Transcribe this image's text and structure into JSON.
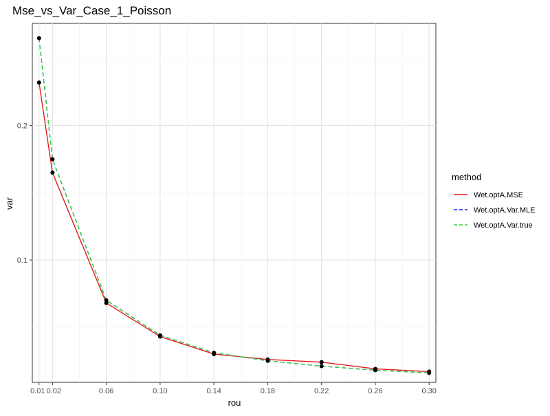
{
  "chart_data": {
    "type": "line",
    "title": "Mse_vs_Var_Case_1_Poisson",
    "xlabel": "rou",
    "ylabel": "var",
    "xlim": [
      0.005,
      0.305
    ],
    "ylim": [
      0.009,
      0.276
    ],
    "x_ticks": [
      0.01,
      0.02,
      0.06,
      0.1,
      0.14,
      0.18,
      0.22,
      0.26,
      0.3
    ],
    "x_tick_labels": [
      "0.01",
      "0.02",
      "0.06",
      "0.10",
      "0.14",
      "0.18",
      "0.22",
      "0.26",
      "0.30"
    ],
    "y_ticks": [
      0.1,
      0.2
    ],
    "y_tick_labels": [
      "0.1",
      "0.2"
    ],
    "grid": true,
    "legend_position": "right",
    "legend_title": "method",
    "x": [
      0.01,
      0.02,
      0.06,
      0.1,
      0.14,
      0.18,
      0.22,
      0.26,
      0.3
    ],
    "series": [
      {
        "name": "Wet.optA.MSE",
        "color": "#e41a1c",
        "dash": "solid",
        "values": [
          0.232,
          0.165,
          0.068,
          0.043,
          0.03,
          0.026,
          0.024,
          0.019,
          0.017
        ]
      },
      {
        "name": "Wet.optA.Var.MLE",
        "color": "#1f1fff",
        "dash": "dashed",
        "values": [
          0.265,
          0.175,
          0.07,
          0.044,
          0.031,
          0.025,
          0.021,
          0.018,
          0.016
        ]
      },
      {
        "name": "Wet.optA.Var.true",
        "color": "#39d339",
        "dash": "dashed",
        "values": [
          0.265,
          0.175,
          0.07,
          0.044,
          0.031,
          0.025,
          0.021,
          0.018,
          0.016
        ]
      }
    ]
  }
}
